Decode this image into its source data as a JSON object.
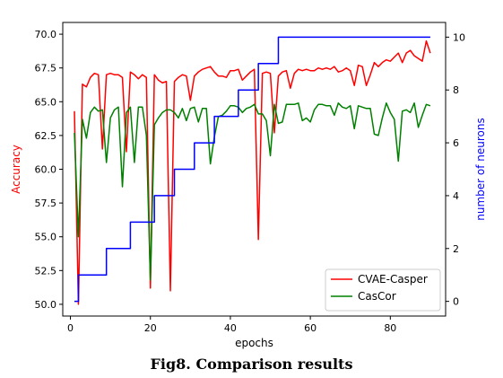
{
  "caption": "Fig8. Comparison results",
  "chart_data": {
    "type": "line",
    "xlabel": "epochs",
    "ylabel_left": "Accuracy",
    "ylabel_right": "number of neurons",
    "xlim": [
      0,
      90
    ],
    "ylim_left": [
      50,
      70
    ],
    "ylim_right": [
      0,
      10
    ],
    "x_ticks": [
      0,
      20,
      40,
      60,
      80
    ],
    "y_left_ticks": [
      "50.0",
      "52.5",
      "55.0",
      "57.5",
      "60.0",
      "62.5",
      "65.0",
      "67.5",
      "70.0"
    ],
    "y_right_ticks": [
      0,
      2,
      4,
      6,
      8,
      10
    ],
    "grid": false,
    "legend_position": "bottom-right",
    "colors": {
      "CVAE-Casper": "#ff0000",
      "CasCor": "#008000",
      "neurons": "#0000ff",
      "left_axis_label": "#ff0000",
      "right_axis_label": "#0000ff"
    },
    "x": [
      1,
      2,
      3,
      4,
      5,
      6,
      7,
      8,
      9,
      10,
      11,
      12,
      13,
      14,
      15,
      16,
      17,
      18,
      19,
      20,
      21,
      22,
      23,
      24,
      25,
      26,
      27,
      28,
      29,
      30,
      31,
      32,
      33,
      34,
      35,
      36,
      37,
      38,
      39,
      40,
      41,
      42,
      43,
      44,
      45,
      46,
      47,
      48,
      49,
      50,
      51,
      52,
      53,
      54,
      55,
      56,
      57,
      58,
      59,
      60,
      61,
      62,
      63,
      64,
      65,
      66,
      67,
      68,
      69,
      70,
      71,
      72,
      73,
      74,
      75,
      76,
      77,
      78,
      79,
      80,
      81,
      82,
      83,
      84,
      85,
      86,
      87,
      88,
      89,
      90
    ],
    "series": [
      {
        "name": "CVAE-Casper",
        "axis": "left",
        "values": [
          64.3,
          50.0,
          66.3,
          66.1,
          66.8,
          67.1,
          67.0,
          61.5,
          67.0,
          67.1,
          67.0,
          67.0,
          66.8,
          61.3,
          67.2,
          67.0,
          66.7,
          67.0,
          66.8,
          51.2,
          67.0,
          66.6,
          66.4,
          66.5,
          51.0,
          66.5,
          66.8,
          67.0,
          66.9,
          65.1,
          66.9,
          67.2,
          67.4,
          67.5,
          67.6,
          67.2,
          66.9,
          66.9,
          66.8,
          67.3,
          67.3,
          67.4,
          66.6,
          66.9,
          67.2,
          67.4,
          54.8,
          67.1,
          67.2,
          67.1,
          62.7,
          66.9,
          67.2,
          67.3,
          66.0,
          67.1,
          67.4,
          67.3,
          67.4,
          67.3,
          67.3,
          67.5,
          67.4,
          67.5,
          67.4,
          67.6,
          67.2,
          67.3,
          67.5,
          67.3,
          66.2,
          67.7,
          67.6,
          66.2,
          67.0,
          67.9,
          67.6,
          67.9,
          68.1,
          68.0,
          68.3,
          68.6,
          67.9,
          68.6,
          68.8,
          68.4,
          68.2,
          68.0,
          69.5,
          68.6
        ],
        "label_note": ""
      },
      {
        "name": "CasCor",
        "axis": "left",
        "values": [
          62.7,
          55.0,
          63.7,
          62.3,
          64.2,
          64.6,
          64.3,
          64.4,
          60.5,
          63.8,
          64.4,
          64.6,
          58.7,
          64.2,
          64.6,
          60.5,
          64.6,
          64.6,
          62.5,
          51.8,
          63.3,
          63.8,
          64.2,
          64.4,
          64.4,
          64.2,
          63.8,
          64.5,
          63.6,
          64.5,
          64.6,
          63.5,
          64.5,
          64.5,
          60.4,
          62.4,
          63.9,
          64.0,
          64.3,
          64.7,
          64.7,
          64.6,
          64.2,
          64.5,
          64.6,
          64.8,
          64.1,
          64.1,
          63.6,
          61.0,
          64.8,
          63.4,
          63.5,
          64.8,
          64.8,
          64.8,
          64.9,
          63.6,
          63.8,
          63.5,
          64.4,
          64.8,
          64.8,
          64.7,
          64.7,
          64.0,
          64.9,
          64.6,
          64.5,
          64.7,
          63.0,
          64.7,
          64.6,
          64.5,
          64.5,
          62.6,
          62.5,
          63.8,
          64.9,
          64.2,
          63.7,
          60.6,
          64.3,
          64.4,
          64.2,
          64.9,
          63.1,
          64.0,
          64.8,
          64.7
        ]
      },
      {
        "name": "neurons",
        "axis": "right",
        "legend": false,
        "values": [
          0,
          1,
          1,
          1,
          1,
          1,
          1,
          1,
          2,
          2,
          2,
          2,
          2,
          2,
          3,
          3,
          3,
          3,
          3,
          3,
          4,
          4,
          4,
          4,
          4,
          5,
          5,
          5,
          5,
          5,
          6,
          6,
          6,
          6,
          6,
          7,
          7,
          7,
          7,
          7,
          7,
          8,
          8,
          8,
          8,
          8,
          9,
          9,
          9,
          9,
          9,
          10,
          10,
          10,
          10,
          10,
          10,
          10,
          10,
          10,
          10,
          10,
          10,
          10,
          10,
          10,
          10,
          10,
          10,
          10,
          10,
          10,
          10,
          10,
          10,
          10,
          10,
          10,
          10,
          10,
          10,
          10,
          10,
          10,
          10,
          10,
          10,
          10,
          10,
          10
        ]
      }
    ]
  }
}
